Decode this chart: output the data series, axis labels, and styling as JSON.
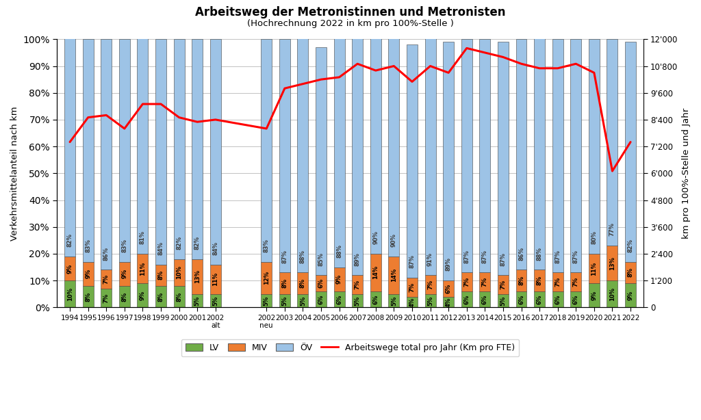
{
  "title": "Arbeitsweg der Metronistinnen und Metronisten",
  "subtitle": "(Hochrechnung 2022 in km pro 100%-Stelle )",
  "ylabel_left": "Verkehrsmittelanteil nach km",
  "ylabel_right": "km pro 100%-Stelle und Jahr",
  "colors": {
    "LV": "#70AD47",
    "MIV": "#ED7D31",
    "OV": "#9DC3E6",
    "line": "#FF0000",
    "bar_edge": "#404040"
  },
  "group1_years": [
    "1994",
    "1995",
    "1996",
    "1997",
    "1998",
    "1999",
    "2000",
    "2001",
    "2002\nalt"
  ],
  "group1_LV": [
    10,
    8,
    7,
    8,
    9,
    8,
    8,
    5,
    5
  ],
  "group1_MIV": [
    9,
    9,
    7,
    9,
    11,
    8,
    10,
    13,
    11
  ],
  "group1_OV": [
    82,
    83,
    86,
    83,
    81,
    84,
    82,
    82,
    84
  ],
  "group1_line": [
    7400,
    8500,
    8600,
    8000,
    9100,
    9100,
    8500,
    8300,
    8400
  ],
  "group2_years": [
    "2002\nneu",
    "2003",
    "2004",
    "2005",
    "2006",
    "2007",
    "2008",
    "2009",
    "2010",
    "2011",
    "2012",
    "2013",
    "2014",
    "2015",
    "2016",
    "2017",
    "2018",
    "2019",
    "2020",
    "2021",
    "2022"
  ],
  "group2_LV": [
    5,
    5,
    5,
    6,
    6,
    5,
    6,
    5,
    4,
    5,
    4,
    6,
    6,
    5,
    6,
    6,
    6,
    6,
    9,
    10,
    9
  ],
  "group2_MIV": [
    12,
    8,
    8,
    6,
    9,
    7,
    14,
    14,
    7,
    7,
    6,
    7,
    7,
    7,
    8,
    8,
    7,
    7,
    11,
    13,
    8
  ],
  "group2_OV": [
    83,
    87,
    88,
    85,
    88,
    89,
    90,
    90,
    87,
    91,
    89,
    87,
    87,
    87,
    86,
    88,
    87,
    87,
    80,
    77,
    82
  ],
  "group2_line": [
    8000,
    9800,
    10000,
    10200,
    10300,
    10900,
    10600,
    10800,
    10100,
    10800,
    10500,
    11600,
    11400,
    11200,
    10900,
    10700,
    10700,
    10900,
    10500,
    6100,
    7400
  ],
  "right_axis_ticks": [
    0,
    1200,
    2400,
    3600,
    4800,
    6000,
    7200,
    8400,
    9600,
    10800,
    12000
  ],
  "right_axis_labels": [
    "0",
    "1'200",
    "2'400",
    "3'600",
    "4'800",
    "6'000",
    "7'200",
    "8'400",
    "9'600",
    "10'800",
    "12'000"
  ]
}
